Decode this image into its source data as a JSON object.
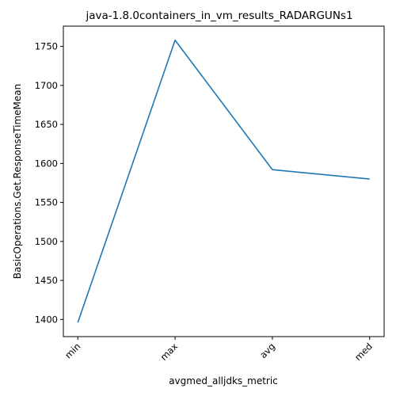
{
  "chart_data": {
    "type": "line",
    "title": "java-1.8.0containers_in_vm_results_RADARGUNs1",
    "xlabel": "avgmed_alljdks_metric",
    "ylabel": "BasicOperations.Get.ResponseTimeMean",
    "categories": [
      "min",
      "max",
      "avg",
      "med"
    ],
    "series": [
      {
        "values": [
          1396,
          1758,
          1592,
          1580
        ],
        "color": "#1f77b4"
      }
    ],
    "ylim": [
      1378,
      1776
    ],
    "yticks": [
      1400,
      1450,
      1500,
      1550,
      1600,
      1650,
      1700,
      1750
    ],
    "x_tick_rotation_deg": 45,
    "grid": false,
    "legend": "none"
  }
}
